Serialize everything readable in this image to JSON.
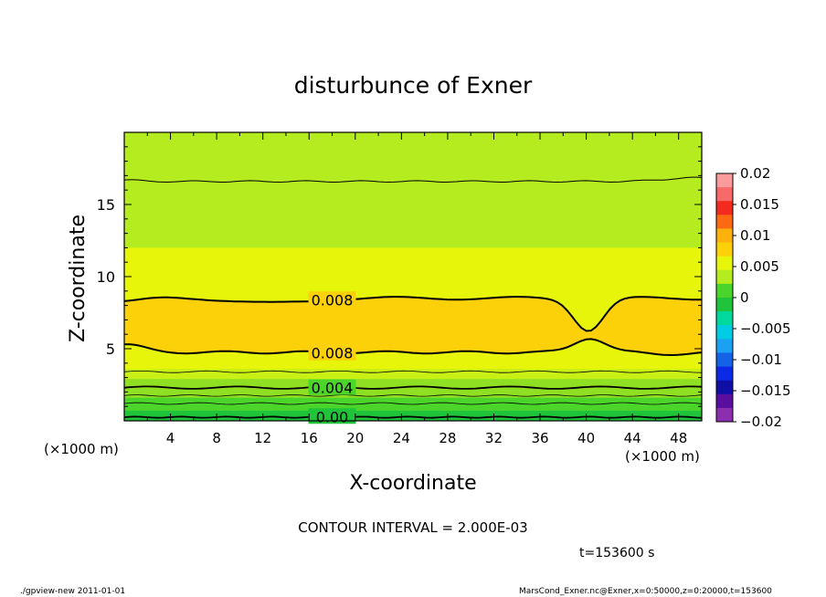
{
  "chart_data": {
    "type": "contour",
    "title": "disturbunce of Exner",
    "xlabel": "X-coordinate",
    "ylabel": "Z-coordinate",
    "x_unit": "(×1000 m)",
    "y_unit": "(×1000 m)",
    "xlim": [
      0,
      50
    ],
    "ylim": [
      0,
      20
    ],
    "x_ticks": [
      "4",
      "8",
      "12",
      "16",
      "20",
      "24",
      "28",
      "32",
      "36",
      "40",
      "44",
      "48"
    ],
    "y_ticks": [
      "5",
      "10",
      "15"
    ],
    "fill_bands": [
      {
        "z_top": 20.0,
        "color": "#b4ec1f"
      },
      {
        "z_top": 12.0,
        "color": "#e6f50a"
      },
      {
        "z_top": 3.6,
        "color": "#c9f014"
      },
      {
        "z_top": 2.9,
        "color": "#8fe023"
      },
      {
        "z_top": 1.6,
        "color": "#4bd52b"
      },
      {
        "z_top": 0.7,
        "color": "#1fc43a"
      }
    ],
    "core_region": {
      "level": 0.008,
      "color": "#fcd10a"
    },
    "contour_labels": [
      {
        "text": "0.008",
        "x": 18,
        "z": 8.4
      },
      {
        "text": "0.008",
        "x": 18,
        "z": 4.7
      },
      {
        "text": "0.004",
        "x": 18,
        "z": 2.3
      },
      {
        "text": "0.00",
        "x": 18,
        "z": 0.3
      }
    ],
    "contour_interval": "CONTOUR INTERVAL = 2.000E-03",
    "time": "t=153600 s",
    "colorbar": {
      "ticks": [
        "0.02",
        "0.015",
        "0.01",
        "0.005",
        "0",
        "−0.005",
        "−0.01",
        "−0.015",
        "−0.02"
      ],
      "colors": [
        "#fb9b9b",
        "#f86a6a",
        "#f22b1e",
        "#fb6a10",
        "#fcb10c",
        "#fcd10a",
        "#e6f50a",
        "#b4ec1f",
        "#4bd52b",
        "#1fc43a",
        "#00d99e",
        "#00cce4",
        "#1aa1f2",
        "#1463e6",
        "#0a2ae6",
        "#0f0fa6",
        "#5a0ea0",
        "#8b2fb0"
      ]
    }
  },
  "footer": {
    "left": "./gpview-new   2011-01-01",
    "right": "MarsCond_Exner.nc@Exner,x=0:50000,z=0:20000,t=153600"
  }
}
